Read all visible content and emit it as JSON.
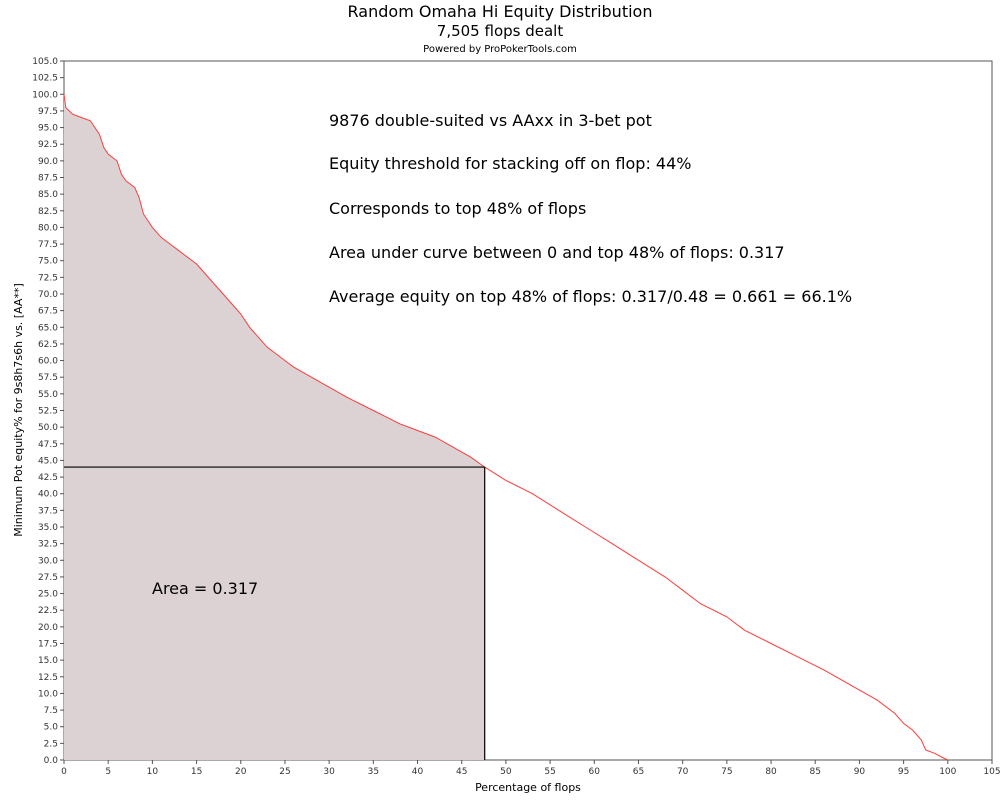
{
  "chart_data": {
    "type": "area",
    "title": "Random Omaha Hi Equity Distribution",
    "subtitle": "7,505 flops dealt",
    "credit": "Powered by ProPokerTools.com",
    "xlabel": "Percentage of flops",
    "ylabel": "Minimum Pot equity% for 9s8h7s6h vs. [AA**]",
    "xlim": [
      0,
      105
    ],
    "ylim": [
      0,
      105
    ],
    "x_tick_step": 5,
    "y_tick_step": 2.5,
    "grid": false,
    "series": [
      {
        "color": "#ff3b3b",
        "x": [
          0,
          0.2,
          1,
          2,
          3,
          3.5,
          4,
          4.5,
          5,
          5.5,
          6,
          6.5,
          7,
          8,
          8.5,
          9,
          10,
          11,
          12,
          13,
          14,
          15,
          16,
          17,
          18,
          19,
          20,
          21,
          22,
          23,
          24,
          25,
          26,
          28,
          30,
          32,
          35,
          38,
          40,
          42,
          44,
          46,
          47.6,
          50,
          53,
          56,
          59,
          62,
          65,
          68,
          70,
          72,
          75,
          77,
          80,
          83,
          86,
          88,
          90,
          92,
          94,
          95,
          96,
          97,
          97.5,
          98.5,
          99.5,
          100
        ],
        "y": [
          100,
          98,
          97,
          96.5,
          96,
          95,
          94,
          92,
          91,
          90.5,
          90,
          88,
          87,
          86,
          84.5,
          82,
          80,
          78.5,
          77.5,
          76.5,
          75.5,
          74.5,
          73,
          71.5,
          70,
          68.5,
          67,
          65,
          63.5,
          62,
          61,
          60,
          59,
          57.5,
          56,
          54.5,
          52.5,
          50.5,
          49.5,
          48.5,
          47,
          45.5,
          44,
          42,
          40,
          37.5,
          35,
          32.5,
          30,
          27.5,
          25.5,
          23.5,
          21.5,
          19.5,
          17.5,
          15.5,
          13.5,
          12,
          10.5,
          9,
          7,
          5.5,
          4.5,
          3,
          1.5,
          1,
          0.3,
          0
        ]
      }
    ],
    "fill_color": "#dcd2d4",
    "threshold": {
      "x": 47.6,
      "y": 44
    },
    "annotations": {
      "line1": "9876 double-suited vs AAxx in 3-bet pot",
      "line2": "Equity threshold for stacking off on flop: 44%",
      "line3": "Corresponds to top 48% of flops",
      "line4": "Area under curve between 0 and top 48% of flops: 0.317",
      "line5": "Average equity on top 48% of flops: 0.317/0.48 = 0.661 = 66.1%",
      "area_label": "Area = 0.317"
    }
  }
}
